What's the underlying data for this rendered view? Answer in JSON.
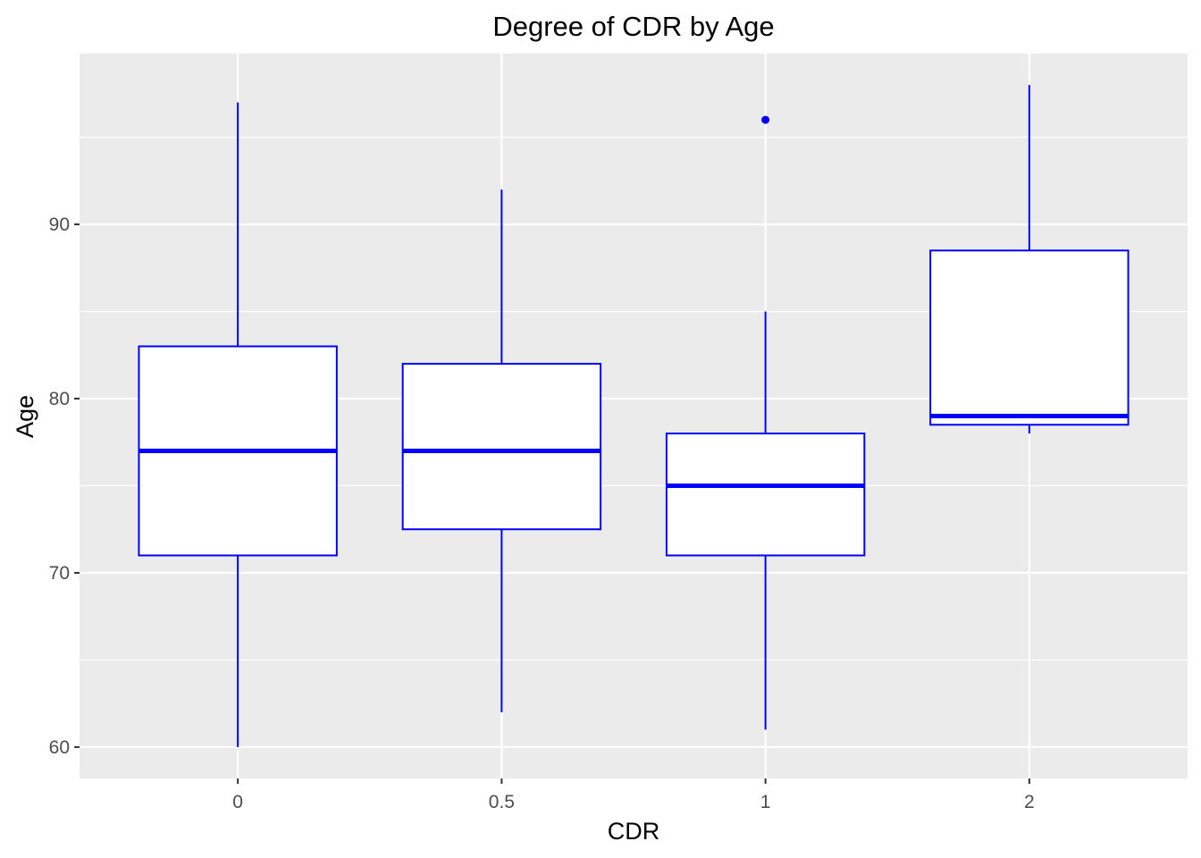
{
  "chart_data": {
    "type": "box",
    "title": "Degree of CDR by Age",
    "xlabel": "CDR",
    "ylabel": "Age",
    "categories": [
      "0",
      "0.5",
      "1",
      "2"
    ],
    "y_ticks": [
      60,
      70,
      80,
      90
    ],
    "ylim": [
      58.2,
      99.8
    ],
    "grid": true,
    "legend": "none",
    "boxes": [
      {
        "category": "0",
        "whisker_low": 60,
        "q1": 71,
        "median": 77,
        "q3": 83,
        "whisker_high": 97,
        "outliers": []
      },
      {
        "category": "0.5",
        "whisker_low": 62,
        "q1": 72.5,
        "median": 77,
        "q3": 82,
        "whisker_high": 92,
        "outliers": []
      },
      {
        "category": "1",
        "whisker_low": 61,
        "q1": 71,
        "median": 75,
        "q3": 78,
        "whisker_high": 85,
        "outliers": [
          96
        ]
      },
      {
        "category": "2",
        "whisker_low": 78,
        "q1": 78.5,
        "median": 79,
        "q3": 88.5,
        "whisker_high": 98,
        "outliers": []
      }
    ],
    "colors": {
      "panel": "#ebebeb",
      "grid": "#ffffff",
      "box_stroke": "#0000ff",
      "box_fill": "#ffffff"
    }
  }
}
